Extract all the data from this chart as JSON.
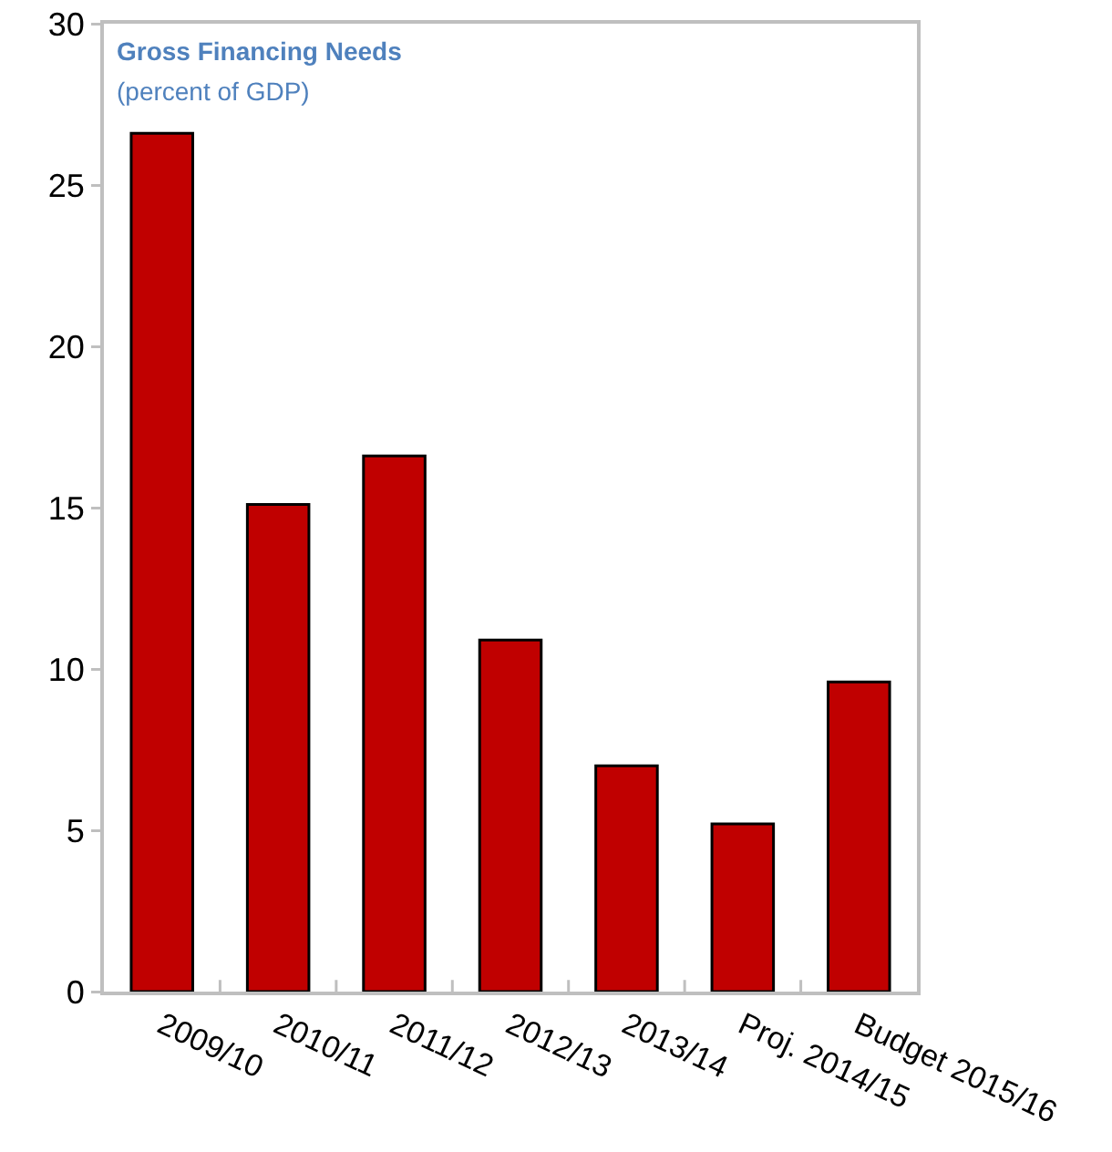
{
  "chart_data": {
    "type": "bar",
    "title": "Gross Financing Needs",
    "subtitle": "(percent of GDP)",
    "categories": [
      "2009/10",
      "2010/11",
      "2011/12",
      "2012/13",
      "2013/14",
      "Proj. 2014/15",
      "Budget 2015/16"
    ],
    "values": [
      26.6,
      15.1,
      16.6,
      10.9,
      7.0,
      5.2,
      9.6
    ],
    "color": "#c00000",
    "ylim": [
      0,
      30
    ],
    "yticks": [
      0,
      5,
      10,
      15,
      20,
      25,
      30
    ]
  }
}
